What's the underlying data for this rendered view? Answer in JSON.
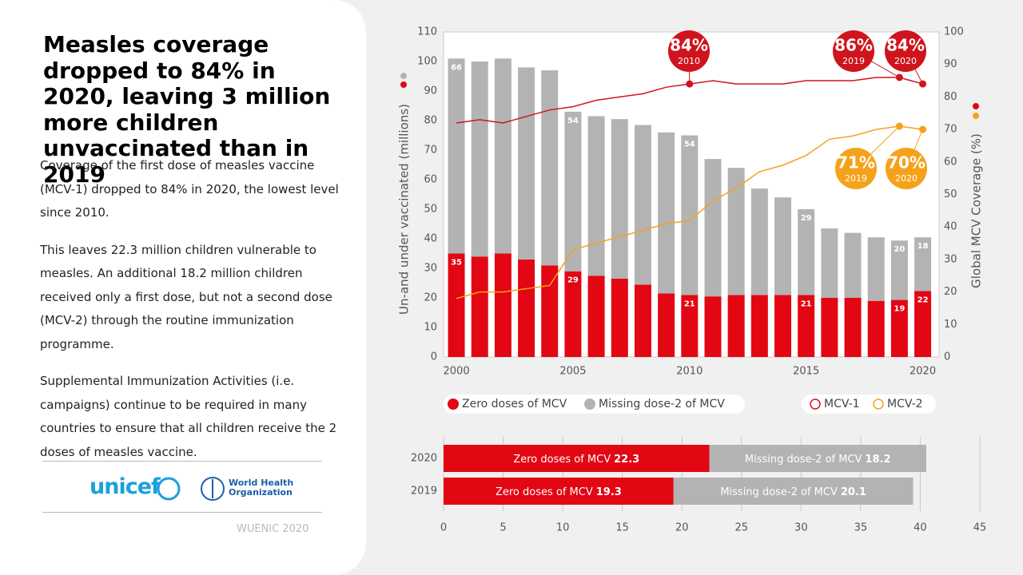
{
  "slide": {
    "title": "Measles coverage dropped to 84% in 2020, leaving 3 million more children unvaccinated than in 2019",
    "paragraphs": [
      "Coverage of the first dose of measles vaccine (MCV-1) dropped to 84% in 2020, the lowest level since 2010.",
      "This leaves 22.3 million children vulnerable to measles. An additional 18.2 million children received only a first dose, but not a second dose (MCV-2) through the routine immunization programme.",
      "Supplemental Immunization Activities (i.e. campaigns) continue to be required in many countries to ensure that all children receive the 2 doses of measles vaccine."
    ],
    "logos": {
      "unicef": "unicef",
      "who": [
        "World Health",
        "Organization"
      ]
    },
    "footer": "WUENIC 2020"
  },
  "chart_data": [
    {
      "type": "combo",
      "x": [
        2000,
        2001,
        2002,
        2003,
        2004,
        2005,
        2006,
        2007,
        2008,
        2009,
        2010,
        2011,
        2012,
        2013,
        2014,
        2015,
        2016,
        2017,
        2018,
        2019,
        2020
      ],
      "xlim": [
        1999.45,
        2020.7
      ],
      "xticks": [
        2000,
        2005,
        2010,
        2015,
        2020
      ],
      "ylabel": "Un-and under vaccinated (millions)",
      "y2label": "Global MCV Coverage (%)",
      "ylim": [
        0,
        110
      ],
      "yticks": [
        0,
        10,
        20,
        30,
        40,
        50,
        60,
        70,
        80,
        90,
        100,
        110
      ],
      "y2lim": [
        0,
        100
      ],
      "y2ticks": [
        0,
        10,
        20,
        30,
        40,
        50,
        60,
        70,
        80,
        90,
        100
      ],
      "series": [
        {
          "name": "Zero doses of MCV",
          "type": "bar",
          "color": "#e30613",
          "values": [
            35,
            34,
            35,
            33,
            31,
            29,
            27.5,
            26.5,
            24.5,
            21.5,
            21,
            20.5,
            21,
            21,
            21,
            21,
            20,
            20,
            19,
            19.3,
            22.3
          ],
          "value_labels": [
            "35",
            null,
            null,
            null,
            null,
            "29",
            null,
            null,
            null,
            null,
            "21",
            null,
            null,
            null,
            null,
            "21",
            null,
            null,
            null,
            "19",
            "22"
          ]
        },
        {
          "name": "Missing dose-2 of MCV",
          "type": "bar",
          "color": "#b3b3b3",
          "values": [
            66,
            66,
            66,
            65,
            66,
            54,
            54,
            54,
            54,
            54.5,
            54,
            46.5,
            43,
            36,
            33,
            29,
            23.5,
            22,
            21.5,
            20.1,
            18.2
          ],
          "value_labels": [
            "66",
            null,
            null,
            null,
            null,
            "54",
            null,
            null,
            null,
            null,
            "54",
            null,
            null,
            null,
            null,
            "29",
            null,
            null,
            null,
            "20",
            "18"
          ]
        },
        {
          "name": "MCV-1",
          "type": "line",
          "axis": "y2",
          "color": "#d0141d",
          "values": [
            72,
            73,
            72,
            74,
            76,
            77,
            79,
            80,
            81,
            83,
            84,
            85,
            84,
            84,
            84,
            85,
            85,
            85,
            86,
            86,
            84
          ]
        },
        {
          "name": "MCV-2",
          "type": "line",
          "axis": "y2",
          "color": "#f5a21b",
          "values": [
            18,
            20,
            20,
            21,
            22,
            33,
            35,
            37,
            39,
            41,
            42,
            48,
            52,
            57,
            59,
            62,
            67,
            68,
            70,
            71,
            70
          ]
        }
      ],
      "annotations": [
        {
          "text": "84%",
          "sub": "2010"
        },
        {
          "text": "86%",
          "sub": "2019"
        },
        {
          "text": "84%",
          "sub": "2020"
        },
        {
          "text": "71%",
          "sub": "2019"
        },
        {
          "text": "70%",
          "sub": "2020"
        }
      ]
    },
    {
      "type": "hbar",
      "stacked": true,
      "categories": [
        "2020",
        "2019"
      ],
      "xlim": [
        0,
        45
      ],
      "xticks": [
        0,
        5,
        10,
        15,
        20,
        25,
        30,
        35,
        40,
        45
      ],
      "grid": true,
      "series": [
        {
          "name": "Zero doses of MCV",
          "color": "#e30613",
          "values": [
            22.3,
            19.3
          ]
        },
        {
          "name": "Missing dose-2 of MCV",
          "color": "#b3b3b3",
          "values": [
            18.2,
            20.1
          ]
        }
      ]
    }
  ]
}
